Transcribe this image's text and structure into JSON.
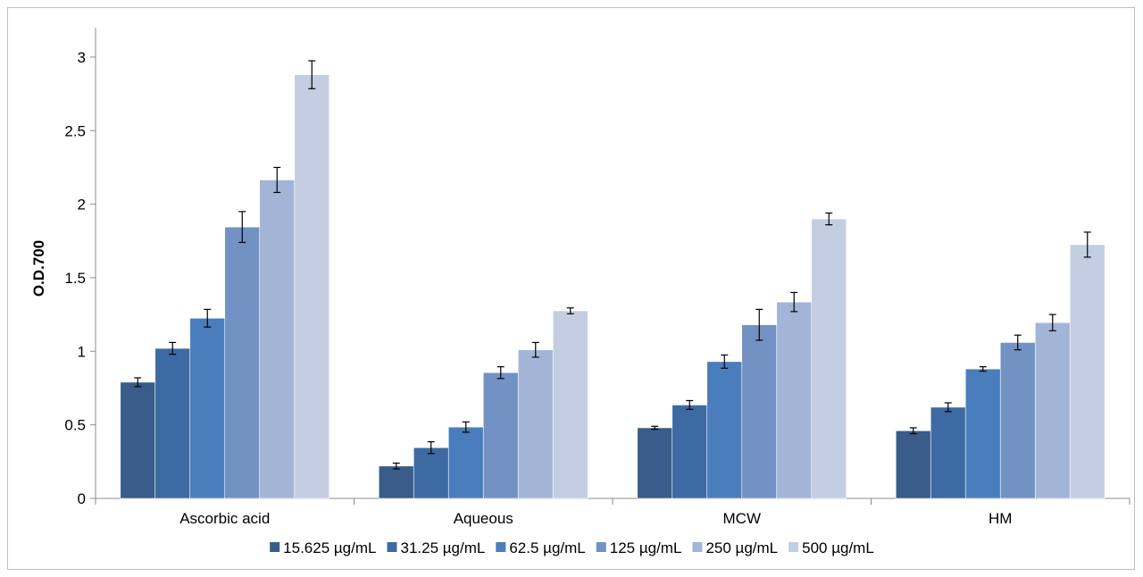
{
  "chart_data": {
    "type": "bar",
    "ylabel": "O.D.700",
    "xlabel": "",
    "ylim": [
      0,
      3.2
    ],
    "yticks": [
      0,
      0.5,
      1,
      1.5,
      2,
      2.5,
      3
    ],
    "ytick_labels": [
      "0",
      "0.5",
      "1",
      "1.5",
      "2",
      "2.5",
      "3"
    ],
    "grid": false,
    "legend_position": "bottom",
    "categories": [
      "Ascorbic acid",
      "Aqueous",
      "MCW",
      "HM"
    ],
    "series": [
      {
        "name": "15.625 µg/mL",
        "color": "#395c8a",
        "values": [
          0.79,
          0.22,
          0.48,
          0.46
        ],
        "errors": [
          0.03,
          0.02,
          0.01,
          0.02
        ]
      },
      {
        "name": "31.25 µg/mL",
        "color": "#3e6aa3",
        "values": [
          1.02,
          0.345,
          0.635,
          0.62
        ],
        "errors": [
          0.04,
          0.04,
          0.03,
          0.03
        ]
      },
      {
        "name": "62.5 µg/mL",
        "color": "#4a7dbb",
        "values": [
          1.225,
          0.485,
          0.93,
          0.88
        ],
        "errors": [
          0.06,
          0.035,
          0.045,
          0.015
        ]
      },
      {
        "name": "125 µg/mL",
        "color": "#7292c4",
        "values": [
          1.845,
          0.855,
          1.18,
          1.06
        ],
        "errors": [
          0.105,
          0.04,
          0.105,
          0.05
        ]
      },
      {
        "name": "250 µg/mL",
        "color": "#a3b5d7",
        "values": [
          2.165,
          1.01,
          1.335,
          1.195
        ],
        "errors": [
          0.085,
          0.05,
          0.065,
          0.055
        ]
      },
      {
        "name": "500 µg/mL",
        "color": "#c3cee3",
        "values": [
          2.88,
          1.275,
          1.9,
          1.725
        ],
        "errors": [
          0.095,
          0.02,
          0.04,
          0.085
        ]
      }
    ]
  }
}
